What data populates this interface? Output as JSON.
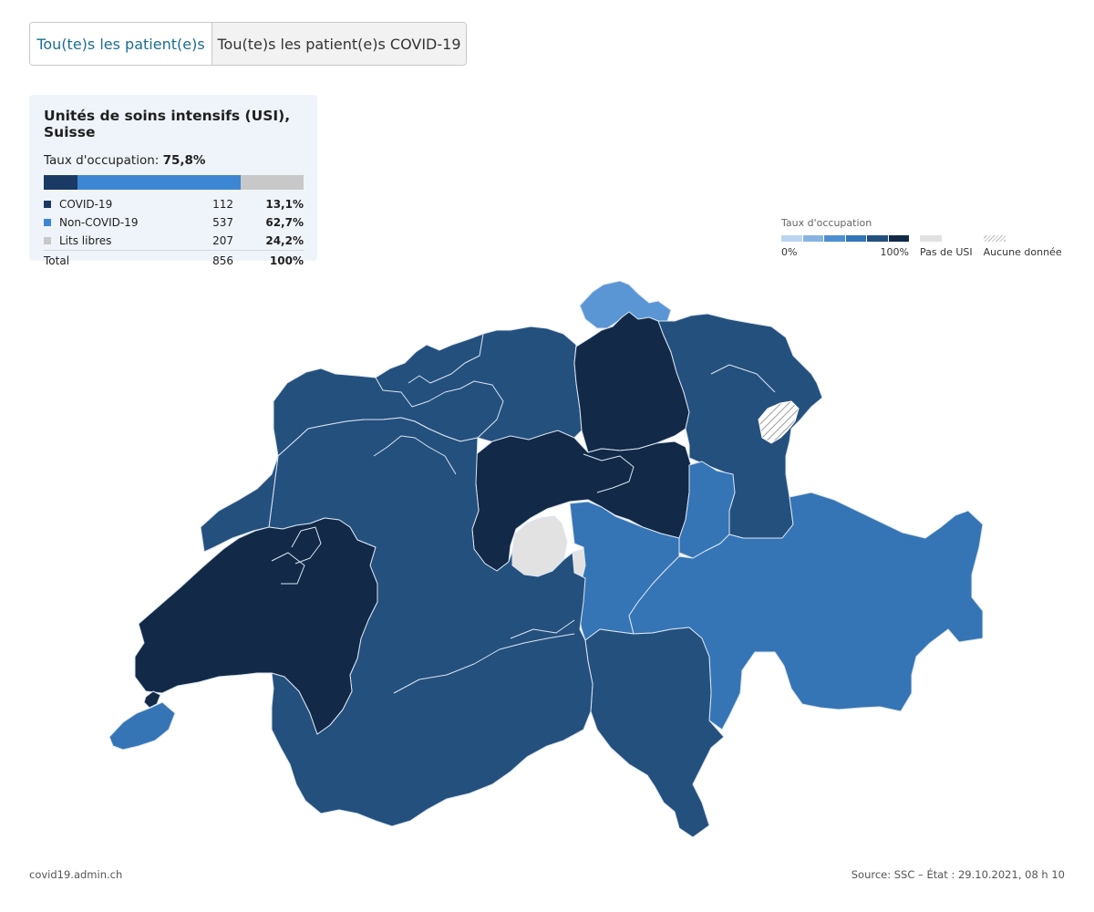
{
  "tabs": {
    "all_patients": "Tou(te)s les patient(e)s",
    "covid_patients": "Tou(te)s les patient(e)s COVID-19"
  },
  "summary": {
    "title": "Unités de soins intensifs (USI), Suisse",
    "occupancy_label": "Taux d'occupation:",
    "occupancy_value": "75,8%",
    "rows": [
      {
        "label": "COVID-19",
        "count": "112",
        "pct": "13,1%",
        "share": 13.1,
        "color": "#1b3a63"
      },
      {
        "label": "Non-COVID-19",
        "count": "537",
        "pct": "62,7%",
        "share": 62.7,
        "color": "#3d86d4"
      },
      {
        "label": "Lits libres",
        "count": "207",
        "pct": "24,2%",
        "share": 24.2,
        "color": "#c8c8c8"
      }
    ],
    "total": {
      "label": "Total",
      "count": "856",
      "pct": "100%"
    }
  },
  "legend": {
    "title": "Taux d'occupation",
    "min_label": "0%",
    "max_label": "100%",
    "scale_colors": [
      "#bcd5ef",
      "#86b4e2",
      "#4e8fd2",
      "#3275b8",
      "#24507e",
      "#122a48"
    ],
    "no_icu_label": "Pas de USI",
    "no_data_label": "Aucune donnée"
  },
  "map": {
    "colors": {
      "darkest": "#122a48",
      "dark": "#24507e",
      "medium": "#3575b5",
      "light": "#5b96d4",
      "no_icu": "#e2e2e2",
      "border": "#dce6f2"
    }
  },
  "footer": {
    "site": "covid19.admin.ch",
    "source": "Source: SSC – État : 29.10.2021, 08 h 10"
  }
}
